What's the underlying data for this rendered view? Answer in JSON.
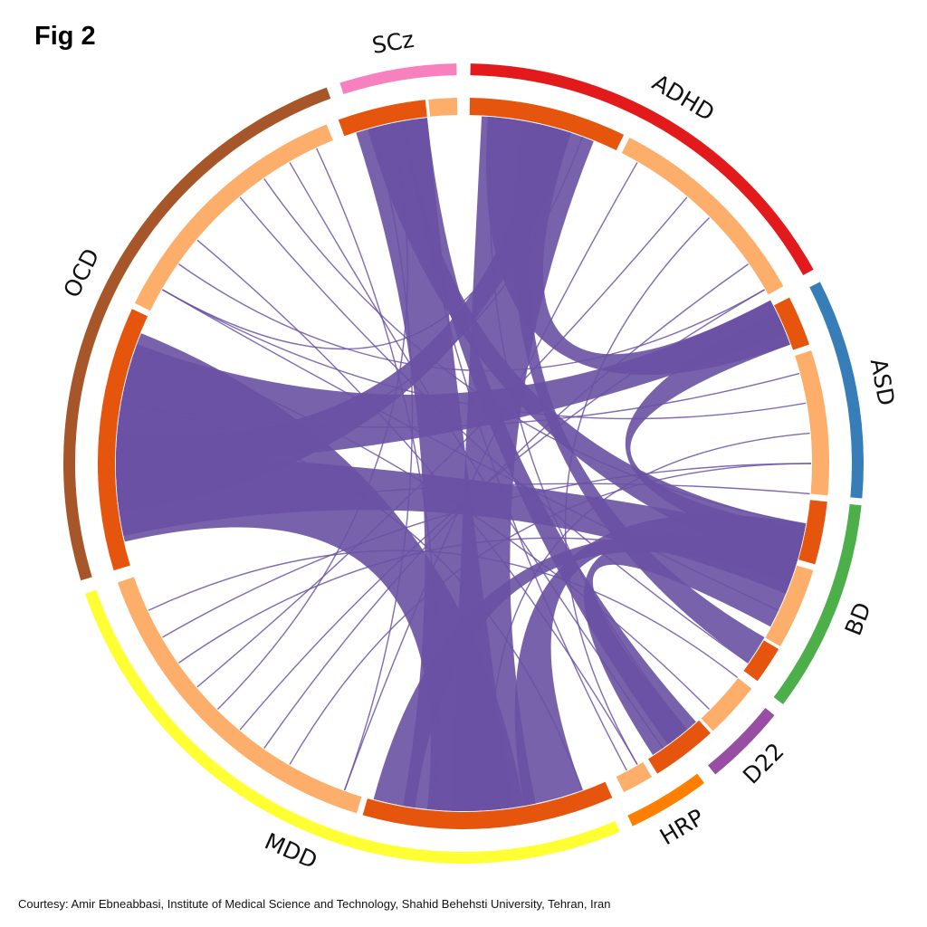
{
  "figure": {
    "title": "Fig 2",
    "courtesy": "Courtesy: Amir Ebneabbasi, Institute of Medical Science and Technology, Shahid Behehsti University, Tehran, Iran"
  },
  "colors": {
    "chord": "#6a51a3",
    "inner_dark": "#e6550d",
    "inner_light": "#fdae6b"
  },
  "sectors": [
    {
      "label": "ADHD",
      "color": "#e31a1c"
    },
    {
      "label": "ASD",
      "color": "#377eb8"
    },
    {
      "label": "BD",
      "color": "#4daf4a"
    },
    {
      "label": "D22",
      "color": "#984ea3"
    },
    {
      "label": "HRP",
      "color": "#ff7f00"
    },
    {
      "label": "MDD",
      "color": "#ffff33"
    },
    {
      "label": "OCD",
      "color": "#a65628"
    },
    {
      "label": "SCz",
      "color": "#f781bf"
    }
  ]
}
